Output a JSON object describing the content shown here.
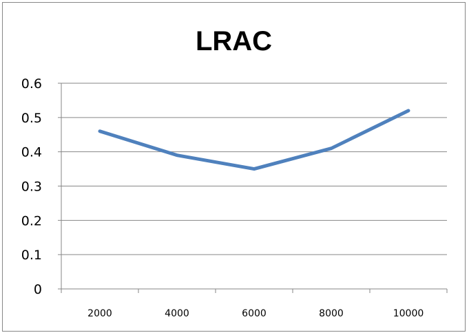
{
  "chart_data": {
    "type": "line",
    "title": "LRAC",
    "xlabel": "",
    "ylabel": "",
    "categories": [
      "2000",
      "4000",
      "6000",
      "8000",
      "10000"
    ],
    "series": [
      {
        "values": [
          0.46,
          0.39,
          0.35,
          0.41,
          0.52
        ],
        "color": "#4F81BD"
      }
    ],
    "ylim": [
      0,
      0.6
    ],
    "yticks": [
      "0",
      "0.1",
      "0.2",
      "0.3",
      "0.4",
      "0.5",
      "0.6"
    ],
    "grid": true,
    "legend": "none"
  }
}
